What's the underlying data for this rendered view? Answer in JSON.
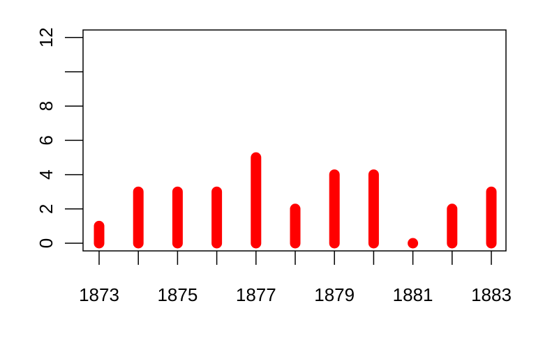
{
  "chart_data": {
    "type": "bar",
    "title": "",
    "xlabel": "",
    "ylabel": "",
    "categories": [
      "1873",
      "1874",
      "1875",
      "1876",
      "1877",
      "1878",
      "1879",
      "1880",
      "1881",
      "1882",
      "1883"
    ],
    "values": [
      1,
      3,
      3,
      3,
      5,
      2,
      4,
      4,
      0,
      2,
      3
    ],
    "x_tick_labels": [
      "1873",
      "",
      "1875",
      "",
      "1877",
      "",
      "1879",
      "",
      "1881",
      "",
      "1883"
    ],
    "y_ticks": [
      0,
      2,
      4,
      6,
      8,
      10,
      12
    ],
    "y_tick_labels": [
      "0",
      "2",
      "4",
      "6",
      "8",
      "",
      "12"
    ],
    "ylim": [
      -0.45,
      12.45
    ],
    "bar_color": "#ff0000",
    "grid": false
  }
}
